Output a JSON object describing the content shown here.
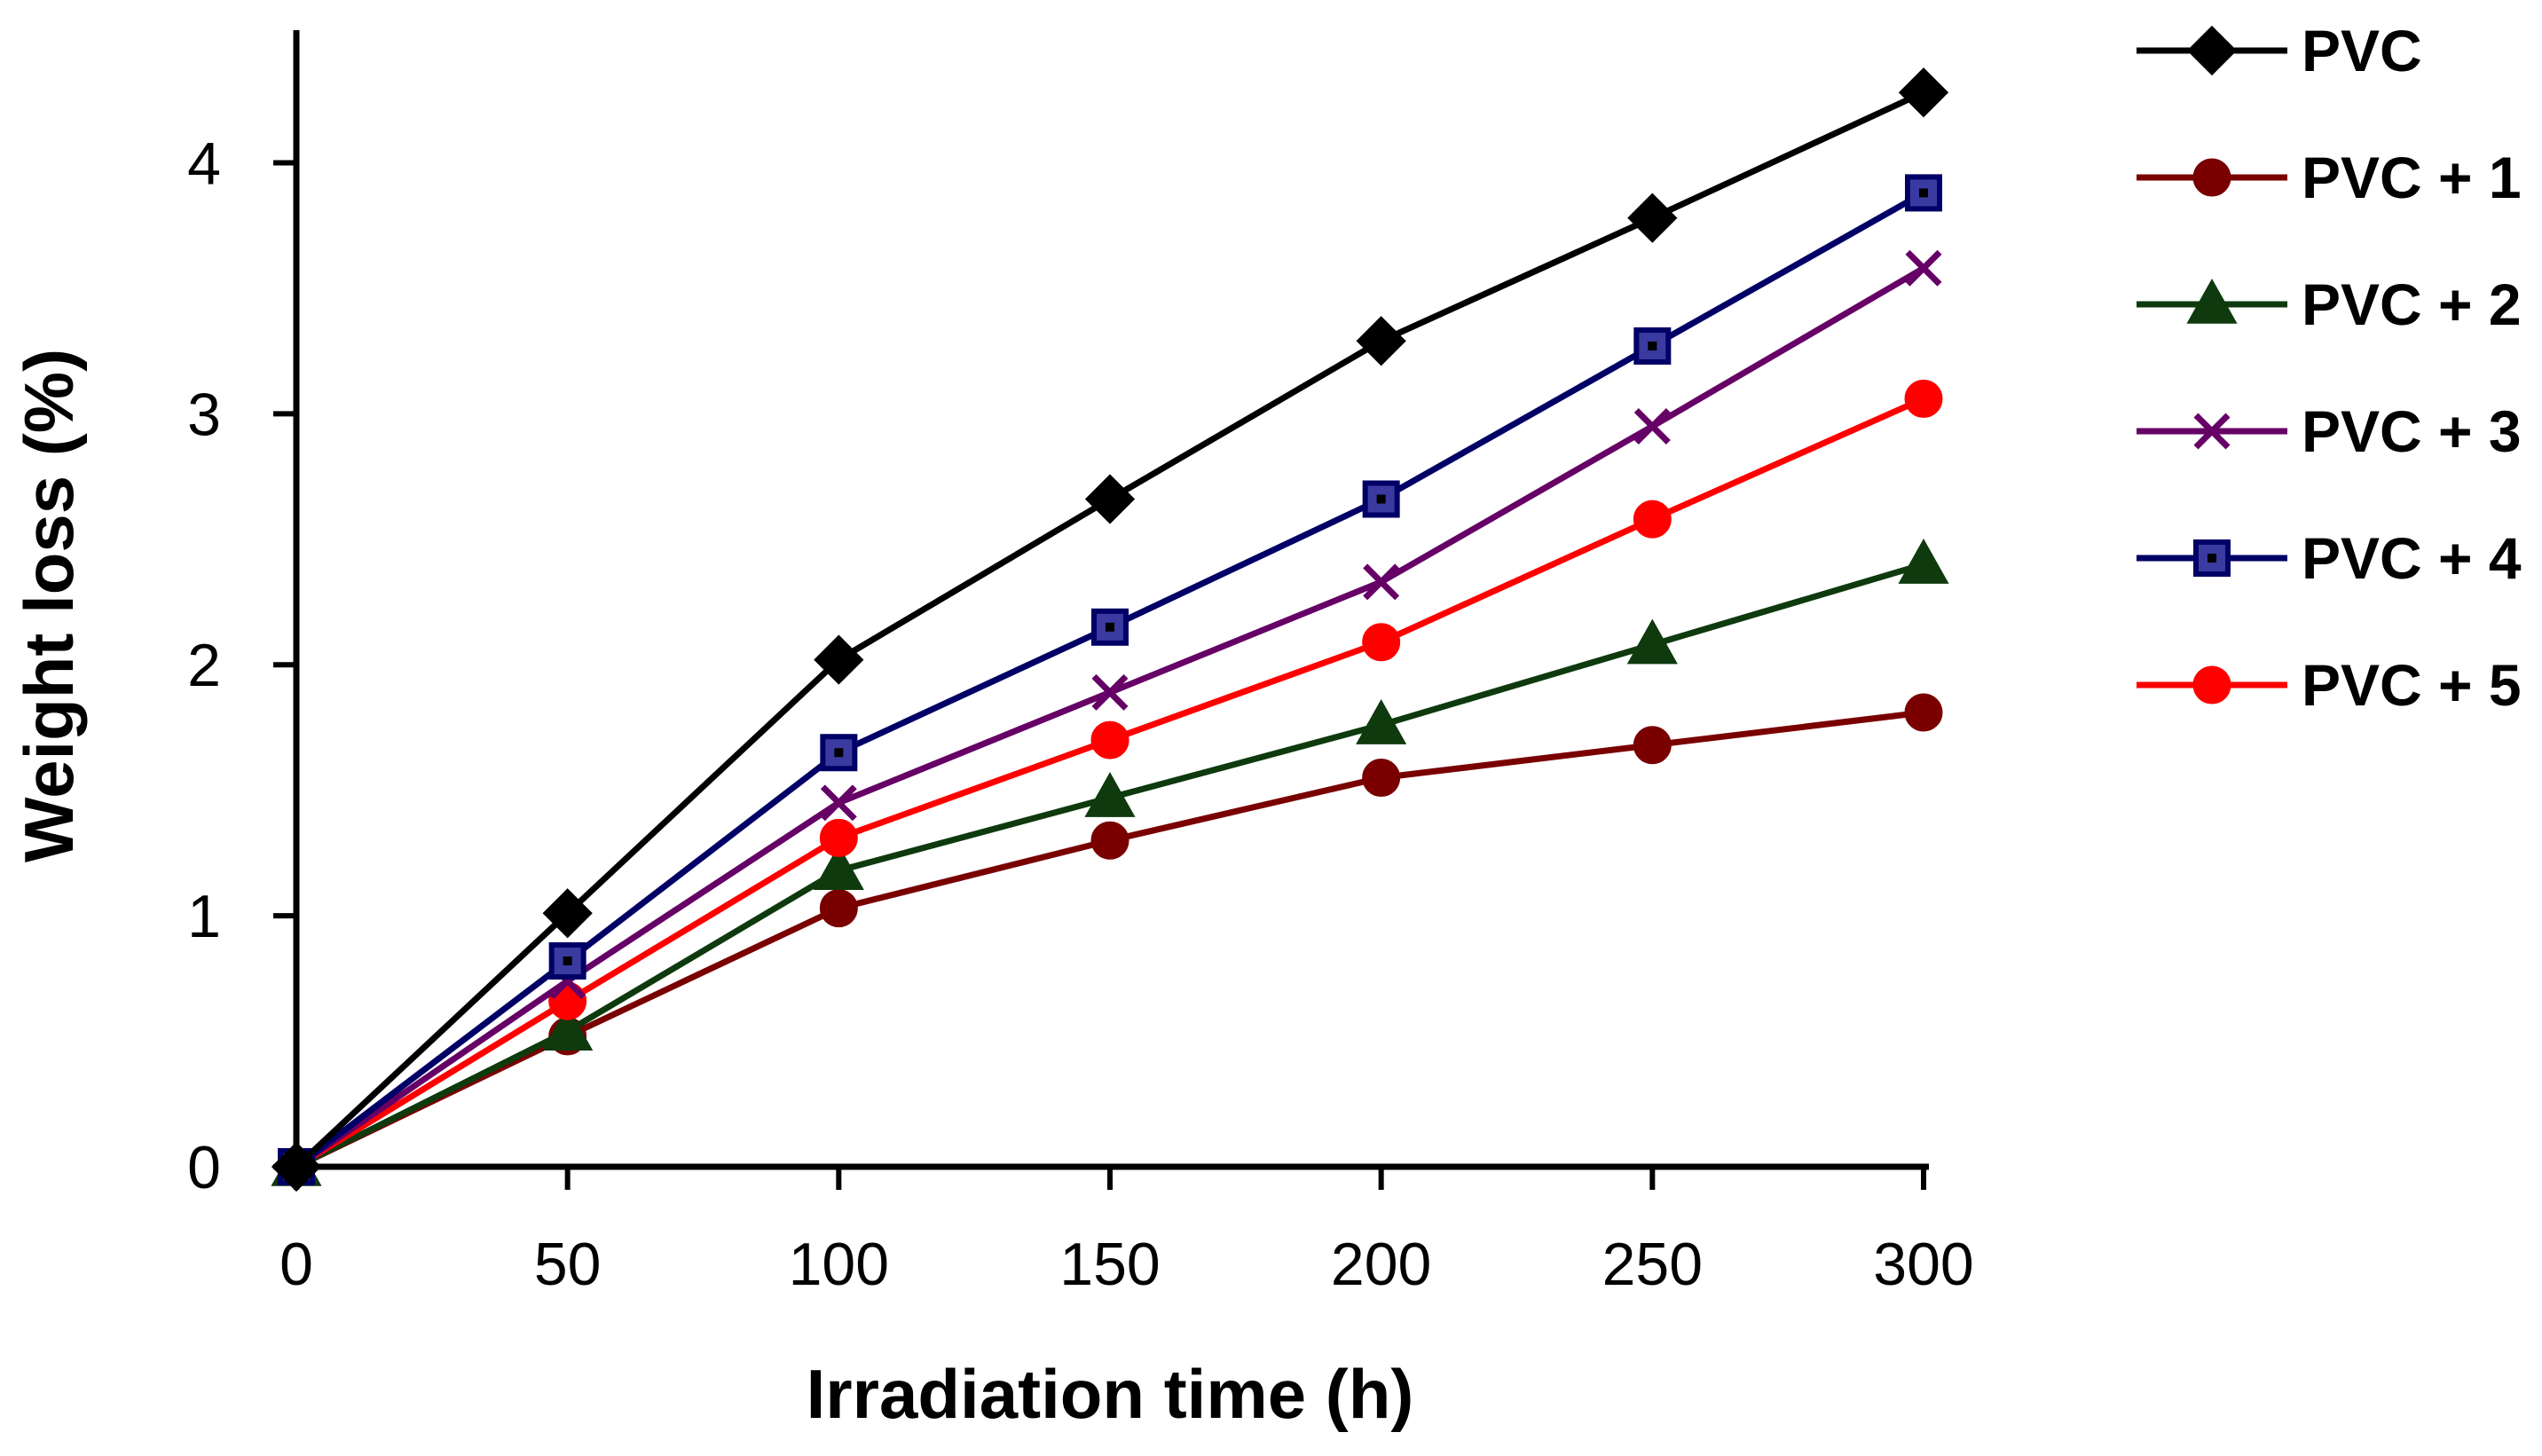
{
  "chart_data": {
    "type": "line",
    "title": "",
    "xlabel": "Irradiation time (h)",
    "ylabel": "Weight loss (%)",
    "xlim": [
      0,
      300
    ],
    "ylim": [
      0,
      4.5
    ],
    "x": [
      0,
      50,
      100,
      150,
      200,
      250,
      300
    ],
    "xticks": [
      "0",
      "50",
      "100",
      "150",
      "200",
      "250",
      "300"
    ],
    "yticks": [
      "0",
      "1",
      "2",
      "3",
      "4"
    ],
    "grid": false,
    "legend_position": "right",
    "series": [
      {
        "name": "PVC",
        "color": "#000000",
        "marker": "diamond",
        "values": [
          0,
          1.01,
          2.02,
          2.66,
          3.29,
          3.78,
          4.28
        ]
      },
      {
        "name": "PVC + 1",
        "color": "#7a0000",
        "marker": "circle",
        "values": [
          0,
          0.52,
          1.03,
          1.3,
          1.55,
          1.68,
          1.81
        ]
      },
      {
        "name": "PVC + 2",
        "color": "#0e3a0e",
        "marker": "triangle",
        "values": [
          0,
          0.54,
          1.18,
          1.47,
          1.76,
          2.08,
          2.4
        ]
      },
      {
        "name": "PVC + 3",
        "color": "#660066",
        "marker": "x",
        "values": [
          0,
          0.74,
          1.45,
          1.89,
          2.33,
          2.95,
          3.58
        ]
      },
      {
        "name": "PVC + 4",
        "color": "#000066",
        "marker": "square",
        "values": [
          0,
          0.82,
          1.65,
          2.15,
          2.66,
          3.27,
          3.88
        ]
      },
      {
        "name": "PVC + 5",
        "color": "#ff0000",
        "marker": "circle",
        "values": [
          0,
          0.66,
          1.31,
          1.7,
          2.09,
          2.58,
          3.06
        ]
      }
    ]
  }
}
